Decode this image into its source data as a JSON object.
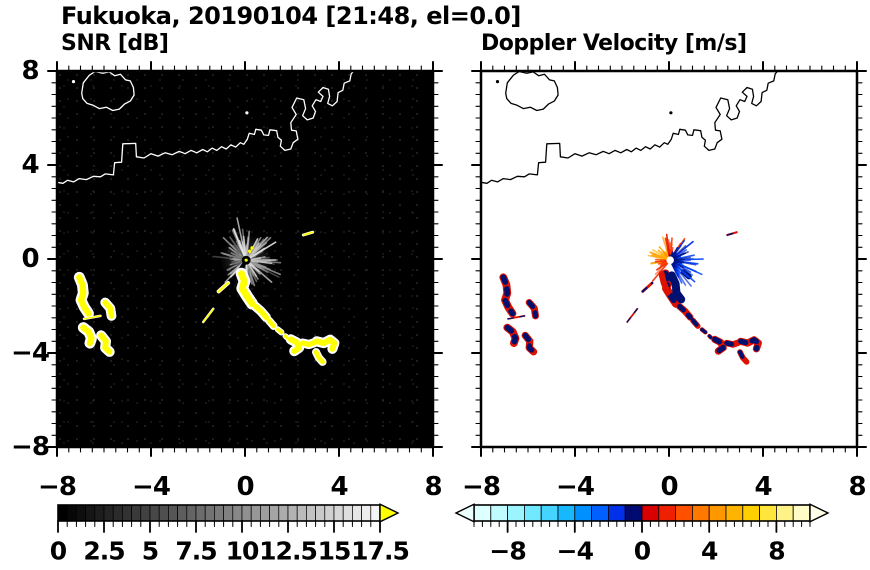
{
  "title": "Fukuoka, 20190104 [21:48, el=0.0]",
  "panels": {
    "snr": {
      "label": "SNR [dB]",
      "bg": "#000000",
      "coast_color": "#ffffff",
      "echo_core": "#ffff00",
      "echo_fringe": "#ffffff"
    },
    "vel": {
      "label": "Doppler Velocity [m/s]",
      "bg": "#ffffff",
      "coast_color": "#000000",
      "echo_pos": "#dd1100",
      "echo_neg": "#001070"
    }
  },
  "axes": {
    "xlim": [
      -8,
      8
    ],
    "ylim": [
      -8,
      8
    ],
    "major_step": 4,
    "minor_step": 0.5,
    "xtick_values": [
      -8,
      -4,
      0,
      4,
      8
    ],
    "xtick_labels": [
      "−8",
      "−4",
      "0",
      "4",
      "8"
    ],
    "ytick_values": [
      8,
      4,
      0,
      -4,
      -8
    ],
    "ytick_labels": [
      "8",
      "4",
      "0",
      "−4",
      "−8"
    ]
  },
  "colorbars": {
    "snr": {
      "vmin": 0,
      "vmax": 17.5,
      "label_step": 2.5,
      "tick_values": [
        0,
        2.5,
        5,
        7.5,
        10,
        12.5,
        15,
        17.5
      ],
      "tick_labels": [
        "0",
        "2.5",
        "5",
        "7.5",
        "10",
        "12.5",
        "15",
        "17.5"
      ],
      "palette": "grayscale-black-to-white",
      "over_color": "#ffff00"
    },
    "vel": {
      "vmin": -10,
      "vmax": 10,
      "label_step": 4,
      "tick_values": [
        -8,
        -4,
        0,
        4,
        8
      ],
      "tick_labels": [
        "−8",
        "−4",
        "0",
        "4",
        "8"
      ],
      "colors": [
        "#dcffff",
        "#c0fbff",
        "#9cf4ff",
        "#70e8ff",
        "#44d4ff",
        "#18b8ff",
        "#0090ff",
        "#0060ff",
        "#0030e8",
        "#000a70",
        "#d80000",
        "#ee2000",
        "#ff5000",
        "#ff7800",
        "#ff9800",
        "#ffb400",
        "#ffcf00",
        "#ffe53c",
        "#fff388",
        "#fffcc8"
      ],
      "under_color": "#ecffff",
      "over_color": "#fffde8"
    }
  },
  "chart_data": {
    "type": "heatmap",
    "subtype": "radar_ppi_pair",
    "x_range_km": [
      -8,
      8
    ],
    "y_range_km": [
      -8,
      8
    ],
    "radar_center_km": [
      0.05,
      -0.05
    ],
    "panels": [
      {
        "name": "SNR",
        "units": "dB",
        "scale_min": 0,
        "scale_max": 17.5
      },
      {
        "name": "Doppler Velocity",
        "units": "m/s",
        "scale_min": -10,
        "scale_max": 10
      }
    ],
    "coastline": {
      "island": [
        [
          -6.95,
          7.05
        ],
        [
          -6.88,
          7.5
        ],
        [
          -6.62,
          7.82
        ],
        [
          -6.38,
          7.98
        ],
        [
          -6.05,
          7.9
        ],
        [
          -5.78,
          7.96
        ],
        [
          -5.55,
          7.8
        ],
        [
          -5.3,
          7.86
        ],
        [
          -5.08,
          7.62
        ],
        [
          -4.88,
          7.58
        ],
        [
          -4.75,
          7.3
        ],
        [
          -4.72,
          6.98
        ],
        [
          -4.88,
          6.72
        ],
        [
          -5.12,
          6.6
        ],
        [
          -5.35,
          6.38
        ],
        [
          -5.62,
          6.32
        ],
        [
          -5.9,
          6.46
        ],
        [
          -6.2,
          6.4
        ],
        [
          -6.48,
          6.55
        ],
        [
          -6.72,
          6.62
        ],
        [
          -6.9,
          6.82
        ]
      ],
      "mainland": [
        [
          -8.2,
          3.3
        ],
        [
          -7.75,
          3.22
        ],
        [
          -7.55,
          3.35
        ],
        [
          -7.3,
          3.28
        ],
        [
          -7.05,
          3.42
        ],
        [
          -6.75,
          3.38
        ],
        [
          -6.45,
          3.52
        ],
        [
          -6.15,
          3.5
        ],
        [
          -5.95,
          3.62
        ],
        [
          -5.6,
          3.58
        ],
        [
          -5.55,
          4.1
        ],
        [
          -5.25,
          4.12
        ],
        [
          -5.2,
          4.9
        ],
        [
          -4.65,
          4.92
        ],
        [
          -4.62,
          4.35
        ],
        [
          -4.3,
          4.3
        ],
        [
          -4.0,
          4.48
        ],
        [
          -3.7,
          4.38
        ],
        [
          -3.4,
          4.52
        ],
        [
          -3.1,
          4.44
        ],
        [
          -2.8,
          4.58
        ],
        [
          -2.55,
          4.48
        ],
        [
          -2.3,
          4.62
        ],
        [
          -2.05,
          4.52
        ],
        [
          -1.8,
          4.66
        ],
        [
          -1.6,
          4.56
        ],
        [
          -1.4,
          4.72
        ],
        [
          -1.2,
          4.62
        ],
        [
          -1.0,
          4.78
        ],
        [
          -0.8,
          4.68
        ],
        [
          -0.6,
          4.86
        ],
        [
          -0.4,
          4.76
        ],
        [
          -0.2,
          4.95
        ],
        [
          -0.05,
          4.88
        ],
        [
          0.1,
          5.1
        ],
        [
          0.18,
          5.35
        ],
        [
          0.4,
          5.3
        ],
        [
          0.46,
          5.52
        ],
        [
          0.7,
          5.48
        ],
        [
          0.8,
          5.28
        ],
        [
          1.0,
          5.26
        ],
        [
          1.06,
          5.5
        ],
        [
          1.35,
          5.46
        ],
        [
          1.4,
          5.18
        ],
        [
          1.55,
          5.05
        ],
        [
          1.5,
          4.8
        ],
        [
          1.7,
          4.62
        ],
        [
          1.95,
          4.68
        ],
        [
          2.05,
          4.95
        ],
        [
          2.25,
          5.1
        ],
        [
          2.18,
          5.45
        ],
        [
          1.98,
          5.48
        ],
        [
          1.95,
          5.8
        ],
        [
          2.18,
          6.15
        ],
        [
          2.0,
          6.45
        ],
        [
          2.2,
          6.85
        ],
        [
          2.5,
          6.78
        ],
        [
          2.58,
          6.4
        ],
        [
          2.45,
          6.1
        ],
        [
          2.65,
          5.92
        ],
        [
          2.9,
          6.0
        ],
        [
          3.0,
          6.28
        ],
        [
          2.86,
          6.52
        ],
        [
          3.02,
          6.78
        ],
        [
          3.22,
          6.7
        ],
        [
          3.32,
          6.92
        ],
        [
          3.12,
          7.1
        ],
        [
          3.32,
          7.3
        ],
        [
          3.55,
          7.22
        ],
        [
          3.6,
          6.92
        ],
        [
          3.52,
          6.62
        ],
        [
          3.72,
          6.52
        ],
        [
          3.92,
          6.7
        ],
        [
          3.96,
          7.08
        ],
        [
          4.16,
          7.18
        ],
        [
          4.22,
          7.48
        ],
        [
          4.46,
          7.58
        ],
        [
          4.52,
          7.88
        ],
        [
          4.72,
          8.1
        ]
      ],
      "islets": [
        [
          0.08,
          6.22
        ],
        [
          -7.3,
          7.55
        ]
      ]
    },
    "echo_blobs": [
      {
        "pts": [
          [
            -7.05,
            -0.78
          ],
          [
            -6.92,
            -1.1
          ],
          [
            -6.88,
            -1.45
          ],
          [
            -6.98,
            -1.75
          ],
          [
            -6.84,
            -2.05
          ],
          [
            -6.66,
            -2.32
          ]
        ],
        "w": 0.3
      },
      {
        "pts": [
          [
            -5.95,
            -1.85
          ],
          [
            -5.73,
            -2.1
          ],
          [
            -5.68,
            -2.42
          ]
        ],
        "w": 0.27
      },
      {
        "pts": [
          [
            -6.85,
            -2.55
          ],
          [
            -6.15,
            -2.42
          ]
        ],
        "w": 0.07
      },
      {
        "pts": [
          [
            -6.88,
            -2.92
          ],
          [
            -6.65,
            -3.1
          ],
          [
            -6.53,
            -3.38
          ],
          [
            -6.6,
            -3.58
          ]
        ],
        "w": 0.3
      },
      {
        "pts": [
          [
            -6.12,
            -3.25
          ],
          [
            -5.92,
            -3.5
          ],
          [
            -5.95,
            -3.78
          ],
          [
            -5.76,
            -3.95
          ]
        ],
        "w": 0.28
      },
      {
        "pts": [
          [
            -1.78,
            -2.68
          ],
          [
            -1.35,
            -2.12
          ]
        ],
        "w": 0.07
      },
      {
        "pts": [
          [
            -0.15,
            -0.62
          ],
          [
            -0.02,
            -0.95
          ],
          [
            -0.12,
            -1.25
          ],
          [
            0.1,
            -1.6
          ],
          [
            0.3,
            -1.9
          ]
        ],
        "w": 0.32
      },
      {
        "pts": [
          [
            -1.12,
            -1.38
          ],
          [
            -0.72,
            -1.02
          ]
        ],
        "w": 0.11
      },
      {
        "pts": [
          [
            0.45,
            -2.02
          ],
          [
            0.68,
            -2.22
          ],
          [
            0.9,
            -2.48
          ]
        ],
        "w": 0.26
      },
      {
        "pts": [
          [
            1.02,
            -2.62
          ],
          [
            1.22,
            -2.85
          ]
        ],
        "w": 0.22
      },
      {
        "pts": [
          [
            1.4,
            -3.0
          ],
          [
            1.55,
            -3.12
          ]
        ],
        "w": 0.17
      },
      {
        "pts": [
          [
            1.72,
            -3.28
          ],
          [
            1.78,
            -3.34
          ]
        ],
        "w": 0.16
      },
      {
        "pts": [
          [
            1.95,
            -3.42
          ],
          [
            2.2,
            -3.55
          ],
          [
            2.3,
            -3.78
          ],
          [
            2.1,
            -3.92
          ]
        ],
        "w": 0.28
      },
      {
        "pts": [
          [
            2.45,
            -3.58
          ],
          [
            2.72,
            -3.64
          ],
          [
            2.95,
            -3.56
          ]
        ],
        "w": 0.25
      },
      {
        "pts": [
          [
            3.05,
            -3.5
          ],
          [
            3.35,
            -3.58
          ],
          [
            3.62,
            -3.44
          ],
          [
            3.8,
            -3.58
          ],
          [
            3.72,
            -3.82
          ]
        ],
        "w": 0.28
      },
      {
        "pts": [
          [
            3.02,
            -3.96
          ],
          [
            3.14,
            -4.2
          ],
          [
            3.3,
            -4.38
          ]
        ],
        "w": 0.22
      },
      {
        "pts": [
          [
            2.48,
            1.02
          ],
          [
            2.88,
            1.14
          ]
        ],
        "w": 0.08
      }
    ],
    "vel_red_extra": [
      {
        "pts": [
          [
            -0.32,
            -0.62
          ],
          [
            -0.22,
            -1.02
          ],
          [
            -0.05,
            -1.42
          ]
        ],
        "w": 0.26
      }
    ],
    "vel_navy_extra": [
      {
        "pts": [
          [
            0.12,
            -0.7
          ],
          [
            0.28,
            -1.05
          ],
          [
            0.32,
            -1.45
          ],
          [
            0.52,
            -1.72
          ]
        ],
        "w": 0.34
      },
      {
        "pts": [
          [
            0.62,
            -0.55
          ],
          [
            0.85,
            -0.75
          ]
        ],
        "w": 0.24
      }
    ],
    "fan_snr": [
      {
        "a1": 0,
        "a2": 360,
        "n": 130,
        "lmin": 0.35,
        "lmax": 1.9,
        "colors": [
          "#555555",
          "#6e6e6e",
          "#8a8a8a",
          "#a5a5a5",
          "#bbbbbb"
        ]
      },
      {
        "a1": -60,
        "a2": 120,
        "n": 30,
        "lmin": 0.6,
        "lmax": 2.2,
        "colors": [
          "#9a9a9a",
          "#c8c8c8"
        ]
      },
      {
        "a1": 0,
        "a2": 360,
        "n": 8,
        "lmin": 0.8,
        "lmax": 2.2,
        "colors": [
          "#e8e8e8"
        ]
      }
    ],
    "fan_snr_shadow": [
      {
        "angle": 236,
        "len": 1.45,
        "w": 0.14
      },
      {
        "angle": 249,
        "len": 1.3,
        "w": 0.1
      }
    ],
    "fan_vel": [
      {
        "a1": 95,
        "a2": 200,
        "n": 26,
        "lmin": 0.4,
        "lmax": 1.6,
        "colors": [
          "#ffaa00",
          "#ff9100",
          "#ffb400"
        ]
      },
      {
        "a1": 168,
        "a2": 232,
        "n": 12,
        "lmin": 0.35,
        "lmax": 1.45,
        "colors": [
          "#ee2200",
          "#ff4400"
        ]
      },
      {
        "a1": 55,
        "a2": 105,
        "n": 14,
        "lmin": 0.4,
        "lmax": 1.35,
        "colors": [
          "#ee1500",
          "#ff3c00"
        ]
      },
      {
        "a1": -75,
        "a2": 55,
        "n": 48,
        "lmin": 0.35,
        "lmax": 1.9,
        "colors": [
          "#0533ee",
          "#0044ff",
          "#0a2bd0"
        ]
      },
      {
        "a1": -65,
        "a2": 50,
        "n": 22,
        "lmin": 0.25,
        "lmax": 1.05,
        "colors": [
          "#001488"
        ]
      },
      {
        "a1": 40,
        "a2": 95,
        "n": 8,
        "lmin": 0.2,
        "lmax": 0.85,
        "colors": [
          "#001488"
        ]
      }
    ],
    "center_marks_snr": [
      [
        0.2,
        0.33
      ],
      [
        0.3,
        0.47
      ]
    ]
  }
}
